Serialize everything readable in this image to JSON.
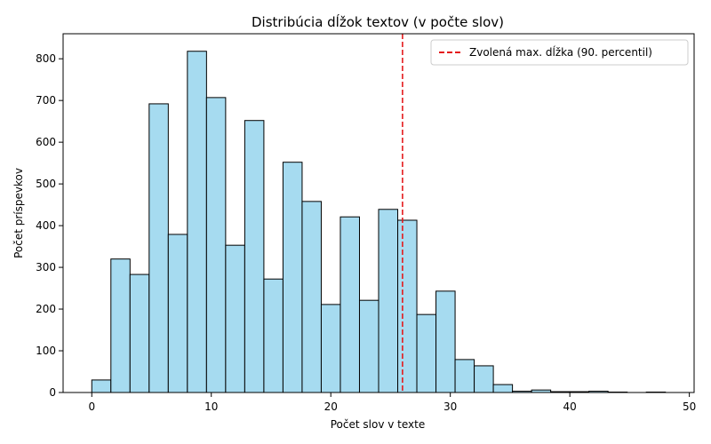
{
  "chart_data": {
    "type": "histogram",
    "title": "Distribúcia dĺžok textov (v počte slov)",
    "xlabel": "Počet slov v texte",
    "ylabel": "Počet príspevkov",
    "xlim": [
      -2.4,
      50.4
    ],
    "ylim": [
      0,
      860
    ],
    "xticks": [
      0,
      10,
      20,
      30,
      40,
      50
    ],
    "yticks": [
      0,
      100,
      200,
      300,
      400,
      500,
      600,
      700,
      800
    ],
    "bin_width": 1.6,
    "bins": [
      {
        "start": 0.0,
        "end": 1.6,
        "count": 30
      },
      {
        "start": 1.6,
        "end": 3.2,
        "count": 320
      },
      {
        "start": 3.2,
        "end": 4.8,
        "count": 283
      },
      {
        "start": 4.8,
        "end": 6.4,
        "count": 692
      },
      {
        "start": 6.4,
        "end": 8.0,
        "count": 379
      },
      {
        "start": 8.0,
        "end": 9.6,
        "count": 818
      },
      {
        "start": 9.6,
        "end": 11.2,
        "count": 707
      },
      {
        "start": 11.2,
        "end": 12.8,
        "count": 353
      },
      {
        "start": 12.8,
        "end": 14.4,
        "count": 652
      },
      {
        "start": 14.4,
        "end": 16.0,
        "count": 272
      },
      {
        "start": 16.0,
        "end": 17.6,
        "count": 552
      },
      {
        "start": 17.6,
        "end": 19.2,
        "count": 458
      },
      {
        "start": 19.2,
        "end": 20.8,
        "count": 211
      },
      {
        "start": 20.8,
        "end": 22.4,
        "count": 421
      },
      {
        "start": 22.4,
        "end": 24.0,
        "count": 221
      },
      {
        "start": 24.0,
        "end": 25.6,
        "count": 439
      },
      {
        "start": 25.6,
        "end": 27.2,
        "count": 413
      },
      {
        "start": 27.2,
        "end": 28.8,
        "count": 187
      },
      {
        "start": 28.8,
        "end": 30.4,
        "count": 243
      },
      {
        "start": 30.4,
        "end": 32.0,
        "count": 79
      },
      {
        "start": 32.0,
        "end": 33.6,
        "count": 64
      },
      {
        "start": 33.6,
        "end": 35.2,
        "count": 19
      },
      {
        "start": 35.2,
        "end": 36.8,
        "count": 3
      },
      {
        "start": 36.8,
        "end": 38.4,
        "count": 6
      },
      {
        "start": 38.4,
        "end": 40.0,
        "count": 2
      },
      {
        "start": 40.0,
        "end": 41.6,
        "count": 2
      },
      {
        "start": 41.6,
        "end": 43.2,
        "count": 3
      },
      {
        "start": 43.2,
        "end": 44.8,
        "count": 1
      },
      {
        "start": 44.8,
        "end": 46.4,
        "count": 0
      },
      {
        "start": 46.4,
        "end": 48.0,
        "count": 1
      }
    ],
    "reference_line": {
      "x": 26,
      "label": "Zvolená max. dĺžka (90. percentil)",
      "color": "#e41a1c",
      "style": "dashed"
    },
    "bar_color": "#a6dbf0",
    "bar_edge_color": "#000000",
    "grid": false,
    "legend": "top-right"
  }
}
